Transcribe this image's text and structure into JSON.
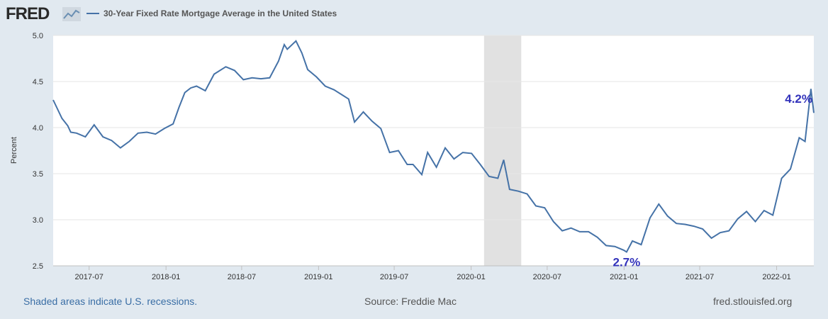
{
  "header": {
    "logo_text": "FRED",
    "logo_icon": "line-chart-icon",
    "series_title": "30-Year Fixed Rate Mortgage Average in the United States",
    "series_color": "#4572a7"
  },
  "footer": {
    "recession_note": "Shaded areas indicate U.S. recessions.",
    "source": "Source: Freddie Mac",
    "site": "fred.stlouisfed.org"
  },
  "chart_data": {
    "type": "line",
    "ylabel": "Percent",
    "ylim": [
      2.5,
      5.0
    ],
    "yticks": [
      "2.5",
      "3.0",
      "3.5",
      "4.0",
      "4.5",
      "5.0"
    ],
    "xlim": [
      "2017-04-06",
      "2022-03-31"
    ],
    "xticks": [
      "2017-07",
      "2018-01",
      "2018-07",
      "2019-01",
      "2019-07",
      "2020-01",
      "2020-07",
      "2021-01",
      "2021-07",
      "2022-01"
    ],
    "grid": "horizontal",
    "recession_shading": [
      [
        "2020-02-01",
        "2020-04-30"
      ]
    ],
    "annotations": [
      {
        "text": "2.7%",
        "x": "2021-01-07",
        "y": 2.65
      },
      {
        "text": "4.2%",
        "x": "2022-03-31",
        "y": 4.16
      }
    ],
    "series": [
      {
        "name": "30-Year Fixed Rate Mortgage Average in the United States",
        "color": "#4572a7",
        "x": [
          "2017-04-06",
          "2017-04-27",
          "2017-05-11",
          "2017-05-18",
          "2017-06-01",
          "2017-06-22",
          "2017-07-13",
          "2017-08-03",
          "2017-08-24",
          "2017-09-14",
          "2017-10-05",
          "2017-10-26",
          "2017-11-16",
          "2017-12-07",
          "2017-12-28",
          "2018-01-18",
          "2018-02-01",
          "2018-02-15",
          "2018-03-01",
          "2018-03-15",
          "2018-04-05",
          "2018-04-26",
          "2018-05-24",
          "2018-06-14",
          "2018-07-05",
          "2018-07-26",
          "2018-08-16",
          "2018-09-06",
          "2018-09-27",
          "2018-10-11",
          "2018-10-18",
          "2018-11-08",
          "2018-11-22",
          "2018-12-06",
          "2018-12-27",
          "2019-01-17",
          "2019-02-07",
          "2019-02-28",
          "2019-03-14",
          "2019-03-28",
          "2019-04-18",
          "2019-05-09",
          "2019-05-30",
          "2019-06-20",
          "2019-07-11",
          "2019-08-01",
          "2019-08-15",
          "2019-09-05",
          "2019-09-19",
          "2019-10-10",
          "2019-10-31",
          "2019-11-21",
          "2019-12-12",
          "2020-01-02",
          "2020-01-23",
          "2020-02-13",
          "2020-03-05",
          "2020-03-19",
          "2020-04-02",
          "2020-04-23",
          "2020-05-14",
          "2020-06-04",
          "2020-06-25",
          "2020-07-16",
          "2020-08-06",
          "2020-08-27",
          "2020-09-17",
          "2020-10-08",
          "2020-10-29",
          "2020-11-19",
          "2020-12-10",
          "2020-12-31",
          "2021-01-07",
          "2021-01-21",
          "2021-02-11",
          "2021-03-04",
          "2021-03-25",
          "2021-04-15",
          "2021-05-06",
          "2021-05-27",
          "2021-06-17",
          "2021-07-08",
          "2021-07-29",
          "2021-08-19",
          "2021-09-09",
          "2021-09-30",
          "2021-10-21",
          "2021-11-11",
          "2021-12-02",
          "2021-12-23",
          "2022-01-13",
          "2022-02-03",
          "2022-02-24",
          "2022-03-10",
          "2022-03-24",
          "2022-03-31"
        ],
        "values": [
          4.3,
          4.1,
          4.02,
          3.95,
          3.94,
          3.9,
          4.03,
          3.9,
          3.86,
          3.78,
          3.85,
          3.94,
          3.95,
          3.93,
          3.99,
          4.04,
          4.22,
          4.38,
          4.43,
          4.45,
          4.4,
          4.58,
          4.66,
          4.62,
          4.52,
          4.54,
          4.53,
          4.54,
          4.72,
          4.9,
          4.85,
          4.94,
          4.81,
          4.63,
          4.55,
          4.45,
          4.41,
          4.35,
          4.31,
          4.06,
          4.17,
          4.07,
          3.99,
          3.73,
          3.75,
          3.6,
          3.6,
          3.49,
          3.73,
          3.57,
          3.78,
          3.66,
          3.73,
          3.72,
          3.6,
          3.47,
          3.45,
          3.65,
          3.33,
          3.31,
          3.28,
          3.15,
          3.13,
          2.98,
          2.88,
          2.91,
          2.87,
          2.87,
          2.81,
          2.72,
          2.71,
          2.67,
          2.65,
          2.77,
          2.73,
          3.02,
          3.17,
          3.04,
          2.96,
          2.95,
          2.93,
          2.9,
          2.8,
          2.86,
          2.88,
          3.01,
          3.09,
          2.98,
          3.1,
          3.05,
          3.45,
          3.55,
          3.89,
          3.85,
          4.42,
          4.16
        ]
      }
    ]
  }
}
